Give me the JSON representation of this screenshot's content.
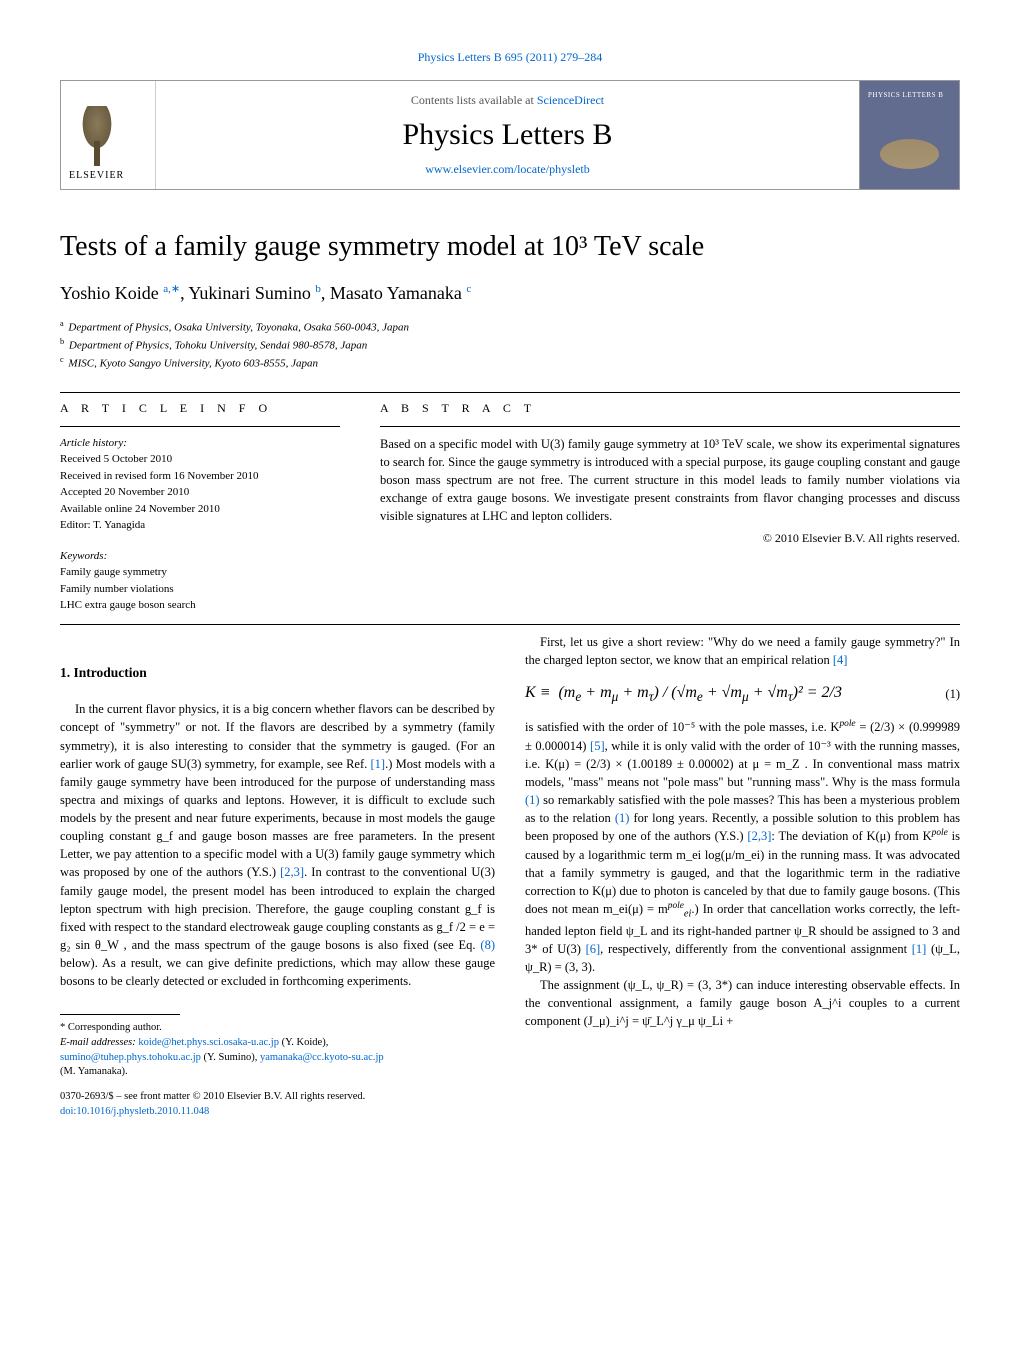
{
  "top": {
    "citation": "Physics Letters B 695 (2011) 279–284",
    "contents_prefix": "Contents lists available at ",
    "contents_link": "ScienceDirect",
    "journal": "Physics Letters B",
    "url": "www.elsevier.com/locate/physletb",
    "elsevier": "ELSEVIER"
  },
  "title": "Tests of a family gauge symmetry model at 10³ TeV scale",
  "authors": {
    "a1_name": "Yoshio Koide",
    "a1_sup": "a,∗",
    "a2_name": "Yukinari Sumino",
    "a2_sup": "b",
    "a3_name": "Masato Yamanaka",
    "a3_sup": "c"
  },
  "affiliations": {
    "a": "Department of Physics, Osaka University, Toyonaka, Osaka 560-0043, Japan",
    "b": "Department of Physics, Tohoku University, Sendai 980-8578, Japan",
    "c": "MISC, Kyoto Sangyo University, Kyoto 603-8555, Japan"
  },
  "info": {
    "label": "A R T I C L E   I N F O",
    "history_label": "Article history:",
    "received": "Received 5 October 2010",
    "revised": "Received in revised form 16 November 2010",
    "accepted": "Accepted 20 November 2010",
    "online": "Available online 24 November 2010",
    "editor": "Editor: T. Yanagida",
    "keywords_label": "Keywords:",
    "k1": "Family gauge symmetry",
    "k2": "Family number violations",
    "k3": "LHC extra gauge boson search"
  },
  "abstract": {
    "label": "A B S T R A C T",
    "text": "Based on a specific model with U(3) family gauge symmetry at 10³ TeV scale, we show its experimental signatures to search for. Since the gauge symmetry is introduced with a special purpose, its gauge coupling constant and gauge boson mass spectrum are not free. The current structure in this model leads to family number violations via exchange of extra gauge bosons. We investigate present constraints from flavor changing processes and discuss visible signatures at LHC and lepton colliders.",
    "copyright": "© 2010 Elsevier B.V. All rights reserved."
  },
  "section1": {
    "heading": "1. Introduction",
    "p1a": "In the current flavor physics, it is a big concern whether flavors can be described by concept of \"symmetry\" or not. If the flavors are described by a symmetry (family symmetry), it is also interesting to consider that the symmetry is gauged. (For an earlier work of gauge SU(3) symmetry, for example, see Ref. ",
    "r1": "[1]",
    "p1b": ".) Most models with a family gauge symmetry have been introduced for the purpose of understanding mass spectra and mixings of quarks and leptons. However, it is difficult to exclude such models by the present and near future experiments, because in most models the gauge coupling constant g_f and gauge boson masses are free parameters. In the present Letter, we pay attention to a specific model with a U(3) family gauge symmetry which was proposed by one of the authors (Y.S.) ",
    "r23": "[2,3]",
    "p1c": ". In contrast to the conventional U(3) family gauge model, the present model has been introduced to explain the charged lepton spectrum with high precision. Therefore, the gauge coupling constant g_f is fixed with respect to the standard electroweak gauge coupling constants as g_f /2 = e = g₂ sin θ_W , and the mass spectrum of the gauge bosons is also fixed (see Eq. ",
    "r8": "(8)",
    "p1d": " below). As a result, we can give definite predictions, which may allow these gauge bosons to be clearly detected or excluded in forthcoming experiments."
  },
  "right": {
    "p1a": "First, let us give a short review: \"Why do we need a family gauge symmetry?\" In the charged lepton sector, we know that an empirical relation ",
    "r4": "[4]",
    "eq1_num": "(1)",
    "p2a": "is satisfied with the order of 10⁻⁵ with the pole masses, i.e. K",
    "pole1": "pole",
    "p2b": " = (2/3) × (0.999989 ± 0.000014) ",
    "r5": "[5]",
    "p2c": ", while it is only valid with the order of 10⁻³ with the running masses, i.e. K(μ) = (2/3) × (1.00189 ± 0.00002) at μ = m_Z . In conventional mass matrix models, \"mass\" means not \"pole mass\" but \"running mass\". Why is the mass formula ",
    "r_eq1_1": "(1)",
    "p2d": " so remarkably satisfied with the pole masses? This has been a mysterious problem as to the relation ",
    "r_eq1_2": "(1)",
    "p2e": " for long years. Recently, a possible solution to this problem has been proposed by one of the authors (Y.S.) ",
    "r23b": "[2,3]",
    "p2f": ": The deviation of K(μ) from K",
    "pole2": "pole",
    "p2g": " is caused by a logarithmic term m_ei log(μ/m_ei) in the running mass. It was advocated that a family symmetry is gauged, and that the logarithmic term in the radiative correction to K(μ) due to photon is canceled by that due to family gauge bosons. (This does not mean m_ei(μ) = m",
    "pole3": "pole",
    "ei": "ei",
    "p2h": ".) In order that cancellation works correctly, the left-handed lepton field ψ_L and its right-handed partner ψ_R should be assigned to 3 and 3* of U(3) ",
    "r6": "[6]",
    "p2i": ", respectively, differently from the conventional assignment ",
    "r1b": "[1]",
    "p2j": " (ψ_L, ψ_R) = (3, 3).",
    "p3": "The assignment (ψ_L, ψ_R) = (3, 3*) can induce interesting observable effects. In the conventional assignment, a family gauge boson A_j^i couples to a current component (J_μ)_i^j = ψ̄_L^j γ_μ ψ_Li +"
  },
  "footnotes": {
    "corr": "Corresponding author.",
    "email_label": "E-mail addresses:",
    "e1": "koide@het.phys.sci.osaka-u.ac.jp",
    "n1": " (Y. Koide), ",
    "e2": "sumino@tuhep.phys.tohoku.ac.jp",
    "n2": " (Y. Sumino), ",
    "e3": "yamanaka@cc.kyoto-su.ac.jp",
    "n3": " (M. Yamanaka)."
  },
  "bottom": {
    "line1": "0370-2693/$ – see front matter © 2010 Elsevier B.V. All rights reserved.",
    "doi": "doi:10.1016/j.physletb.2010.11.048"
  },
  "colors": {
    "link": "#0066cc",
    "cover": "#626c8e"
  }
}
